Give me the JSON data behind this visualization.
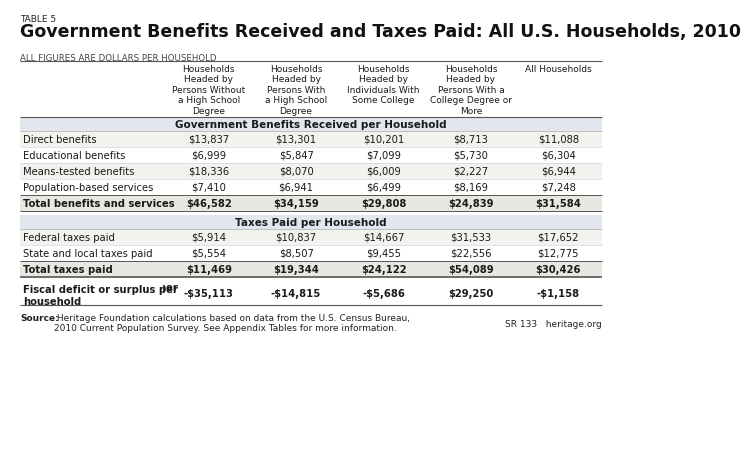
{
  "table5_label": "TABLE 5",
  "title": "Government Benefits Received and Taxes Paid: All U.S. Households, 2010",
  "subtitle": "ALL FIGURES ARE DOLLARS PER HOUSEHOLD",
  "col_headers": [
    "Households\nHeaded by\nPersons Without\na High School\nDegree",
    "Households\nHeaded by\nPersons With\na High School\nDegree",
    "Households\nHeaded by\nIndividuals With\nSome College",
    "Households\nHeaded by\nPersons With a\nCollege Degree or\nMore",
    "All Households"
  ],
  "section1_header": "Government Benefits Received per Household",
  "section1_rows": [
    [
      "Direct benefits",
      "$13,837",
      "$13,301",
      "$10,201",
      "$8,713",
      "$11,088"
    ],
    [
      "Educational benefits",
      "$6,999",
      "$5,847",
      "$7,099",
      "$5,730",
      "$6,304"
    ],
    [
      "Means-tested benefits",
      "$18,336",
      "$8,070",
      "$6,009",
      "$2,227",
      "$6,944"
    ],
    [
      "Population-based services",
      "$7,410",
      "$6,941",
      "$6,499",
      "$8,169",
      "$7,248"
    ]
  ],
  "section1_total": [
    "Total benefits and services",
    "$46,582",
    "$34,159",
    "$29,808",
    "$24,839",
    "$31,584"
  ],
  "section2_header": "Taxes Paid per Household",
  "section2_rows": [
    [
      "Federal taxes paid",
      "$5,914",
      "$10,837",
      "$14,667",
      "$31,533",
      "$17,652"
    ],
    [
      "State and local taxes paid",
      "$5,554",
      "$8,507",
      "$9,455",
      "$22,556",
      "$12,775"
    ]
  ],
  "section2_total": [
    "Total taxes paid",
    "$11,469",
    "$19,344",
    "$24,122",
    "$54,089",
    "$30,426"
  ],
  "deficit_row": [
    "Fiscal deficit or surplus per\nhousehold",
    "-$35,113",
    "-$14,815",
    "-$5,686",
    "$29,250",
    "-$1,158"
  ],
  "footer_bold": "Source:",
  "footer_normal": " Heritage Foundation calculations based on data from the U.S. Census Bureau,\n2010 Current Population Survey. See Appendix Tables for more information.",
  "footer_right": "SR 133   heritage.org",
  "section_header_bg": "#e2e6ee",
  "white_bg": "#ffffff",
  "text_color": "#1a1a1a",
  "total_row_bg": "#e8e8e2",
  "row_alt_bg": "#f2f2ee"
}
